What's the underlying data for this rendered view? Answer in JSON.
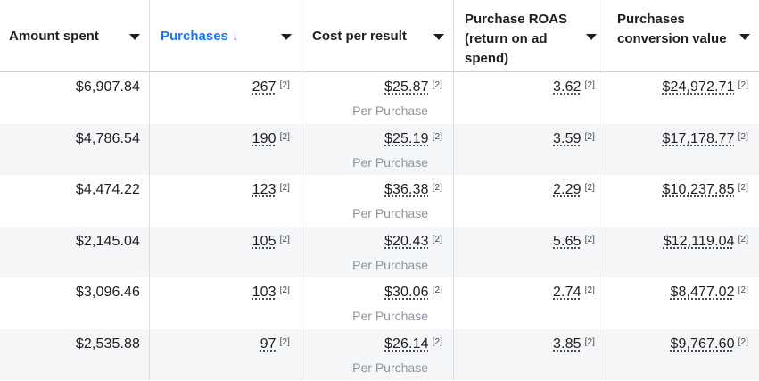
{
  "columns": [
    {
      "label": "Amount spent"
    },
    {
      "label": "Purchases ↓"
    },
    {
      "label": "Cost per result"
    },
    {
      "label": "Purchase ROAS (return on ad spend)"
    },
    {
      "label": "Purchases conversion value"
    }
  ],
  "footnote_marker": "[2]",
  "sub_label": "Per Purchase",
  "rows": [
    {
      "amount_spent": "$6,907.84",
      "purchases": "267",
      "cost_per_result": "$25.87",
      "roas": "3.62",
      "conversion_value": "$24,972.71"
    },
    {
      "amount_spent": "$4,786.54",
      "purchases": "190",
      "cost_per_result": "$25.19",
      "roas": "3.59",
      "conversion_value": "$17,178.77"
    },
    {
      "amount_spent": "$4,474.22",
      "purchases": "123",
      "cost_per_result": "$36.38",
      "roas": "2.29",
      "conversion_value": "$10,237.85"
    },
    {
      "amount_spent": "$2,145.04",
      "purchases": "105",
      "cost_per_result": "$20.43",
      "roas": "5.65",
      "conversion_value": "$12,119.04"
    },
    {
      "amount_spent": "$3,096.46",
      "purchases": "103",
      "cost_per_result": "$30.06",
      "roas": "2.74",
      "conversion_value": "$8,477.02"
    },
    {
      "amount_spent": "$2,535.88",
      "purchases": "97",
      "cost_per_result": "$26.14",
      "roas": "3.85",
      "conversion_value": "$9,767.60"
    }
  ],
  "colors": {
    "accent": "#1877f2",
    "alt_row": "#f5f6f7",
    "subtext": "#8d949e"
  }
}
